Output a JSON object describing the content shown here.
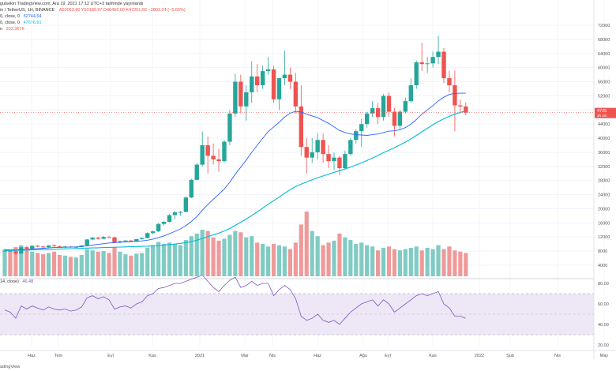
{
  "header": {
    "line1": "gulsekin TradingView.com, Ara 19, 2021 17:12 UTC+3 tarihinde yayınlandı",
    "line2_prefix": "in / TetherUS, 1H, BINANCE",
    "ohlc": "A50053.90  Y50189.97  D46456.00  K47251.66  −2802.24 (−5.60%)",
    "ma1_label": "0, close, 0",
    "ma1_value": "52744.54",
    "ma2_label": "0, close, 0",
    "ma2_value": "47676.91",
    "vol_label": "n",
    "vol_value": "203.367K",
    "rsi_label": "14, close)",
    "rsi_value": "46.48"
  },
  "source_label": "adingView",
  "colors": {
    "up": "#26a69a",
    "down": "#ef5350",
    "ma_fast": "#2962ff",
    "ma_slow": "#00bcd4",
    "vol_up": "#80cbc4",
    "vol_down": "#ef9a9a",
    "rsi_line": "#7e57c2",
    "rsi_band": "#ede7f6",
    "price_tag": "#ef5350"
  },
  "chart_data": [
    {
      "type": "candlestick",
      "title": "BTC / TetherUS, BINANCE",
      "y_axis_labels": [
        "72000",
        "68000",
        "64000",
        "60000",
        "56000",
        "52000",
        "48000",
        "44000",
        "40000",
        "36000",
        "32000",
        "28000",
        "24000",
        "20000",
        "16000",
        "12000",
        "8000",
        "4000"
      ],
      "x_axis_labels": [
        "Haz",
        "Tem",
        "Eyl",
        "Kas",
        "2021",
        "Mar",
        "Nis",
        "Haz",
        "Ağu",
        "Eyl",
        "Kas",
        "2022",
        "Şub",
        "Nis",
        "May"
      ],
      "last_price_tag": "4725",
      "last_price_sub": "3h 4m",
      "candles": [
        [
          8000,
          8200,
          7900,
          8100
        ],
        [
          8100,
          8400,
          7800,
          7900
        ],
        [
          7900,
          8000,
          7000,
          7300
        ],
        [
          7300,
          9200,
          7200,
          9100
        ],
        [
          9100,
          9500,
          8600,
          8700
        ],
        [
          8700,
          9700,
          8500,
          9500
        ],
        [
          9500,
          9800,
          9100,
          9300
        ],
        [
          9300,
          9500,
          8900,
          9100
        ],
        [
          9100,
          9700,
          9000,
          9600
        ],
        [
          9600,
          10000,
          9200,
          9400
        ],
        [
          9400,
          9600,
          9100,
          9200
        ],
        [
          9200,
          9500,
          8900,
          9300
        ],
        [
          9300,
          9400,
          9000,
          9100
        ],
        [
          9100,
          9300,
          8900,
          9200
        ],
        [
          9200,
          9700,
          9100,
          9600
        ],
        [
          9600,
          11500,
          9500,
          11300
        ],
        [
          11300,
          12000,
          11100,
          11800
        ],
        [
          11800,
          12100,
          11200,
          11500
        ],
        [
          11500,
          12300,
          11400,
          12000
        ],
        [
          12000,
          12400,
          11700,
          11900
        ],
        [
          11900,
          12100,
          10300,
          10500
        ],
        [
          10500,
          11000,
          10200,
          10800
        ],
        [
          10800,
          11200,
          10600,
          11000
        ],
        [
          11000,
          11100,
          10500,
          10700
        ],
        [
          10700,
          11500,
          10600,
          11400
        ],
        [
          11400,
          11900,
          11200,
          11700
        ],
        [
          11700,
          13300,
          11600,
          13100
        ],
        [
          13100,
          13800,
          12800,
          13600
        ],
        [
          13600,
          15900,
          13400,
          15700
        ],
        [
          15700,
          16500,
          15200,
          16300
        ],
        [
          16300,
          18500,
          16100,
          18200
        ],
        [
          18200,
          19400,
          17000,
          19000
        ],
        [
          19000,
          19400,
          18000,
          19100
        ],
        [
          19100,
          23500,
          19000,
          23200
        ],
        [
          23200,
          28500,
          23000,
          28200
        ],
        [
          28200,
          33000,
          28000,
          32500
        ],
        [
          32500,
          41900,
          32000,
          38000
        ],
        [
          38000,
          40500,
          30000,
          35000
        ],
        [
          35000,
          38500,
          32500,
          34000
        ],
        [
          34000,
          37000,
          30500,
          33500
        ],
        [
          33500,
          39500,
          33000,
          39000
        ],
        [
          39000,
          48000,
          38000,
          47000
        ],
        [
          47000,
          58300,
          46000,
          56000
        ],
        [
          56000,
          58000,
          47000,
          49000
        ],
        [
          49000,
          55000,
          45000,
          53000
        ],
        [
          53000,
          61800,
          50000,
          57500
        ],
        [
          57500,
          61000,
          53000,
          55000
        ],
        [
          55000,
          60500,
          54000,
          59000
        ],
        [
          59000,
          63000,
          58000,
          59500
        ],
        [
          59500,
          60500,
          50000,
          51000
        ],
        [
          51000,
          57000,
          48000,
          57000
        ],
        [
          57000,
          64800,
          55000,
          58000
        ],
        [
          58000,
          60000,
          54000,
          56000
        ],
        [
          56000,
          58500,
          47000,
          49000
        ],
        [
          49000,
          55000,
          35000,
          37500
        ],
        [
          37500,
          40000,
          30000,
          34500
        ],
        [
          34500,
          40000,
          33000,
          36000
        ],
        [
          36000,
          41500,
          34000,
          39500
        ],
        [
          39500,
          41300,
          33000,
          35500
        ],
        [
          35500,
          38000,
          31500,
          33500
        ],
        [
          33500,
          36000,
          31000,
          34500
        ],
        [
          34500,
          35000,
          29500,
          31500
        ],
        [
          31500,
          36500,
          31000,
          35500
        ],
        [
          35500,
          40000,
          35000,
          39500
        ],
        [
          39500,
          42500,
          38500,
          42000
        ],
        [
          42000,
          45500,
          37500,
          44000
        ],
        [
          44000,
          47500,
          43000,
          47000
        ],
        [
          47000,
          50500,
          46000,
          48500
        ],
        [
          48500,
          50000,
          44000,
          46000
        ],
        [
          46000,
          52500,
          45000,
          52000
        ],
        [
          52000,
          53000,
          46000,
          47500
        ],
        [
          47500,
          48500,
          40500,
          43500
        ],
        [
          43500,
          48000,
          42500,
          47500
        ],
        [
          47500,
          51500,
          47000,
          50500
        ],
        [
          50500,
          57000,
          50000,
          55000
        ],
        [
          55000,
          62000,
          54000,
          61500
        ],
        [
          61500,
          67000,
          59000,
          61000
        ],
        [
          61000,
          63000,
          58500,
          61200
        ],
        [
          61200,
          64500,
          60000,
          63000
        ],
        [
          63000,
          69000,
          61000,
          64500
        ],
        [
          64500,
          65500,
          55600,
          57000
        ],
        [
          57000,
          59000,
          53000,
          55000
        ],
        [
          55000,
          59200,
          42000,
          49300
        ],
        [
          49300,
          51000,
          47000,
          49000
        ],
        [
          49000,
          50200,
          46456,
          47250
        ]
      ],
      "ma_fast": [
        8400,
        8350,
        8300,
        8400,
        8500,
        8600,
        8700,
        8800,
        8900,
        9000,
        9050,
        9100,
        9150,
        9200,
        9300,
        9500,
        9700,
        9900,
        10100,
        10300,
        10400,
        10500,
        10600,
        10700,
        10800,
        10900,
        11100,
        11400,
        11800,
        12300,
        12900,
        13600,
        14300,
        15200,
        16400,
        17800,
        19600,
        21200,
        22700,
        24100,
        25600,
        27500,
        29800,
        31800,
        33800,
        36000,
        38000,
        40000,
        41900,
        43200,
        44500,
        46000,
        47100,
        47600,
        47400,
        46800,
        46300,
        45800,
        45000,
        44200,
        43200,
        42200,
        41600,
        41200,
        41000,
        40900,
        40800,
        41000,
        41200,
        41600,
        42000,
        42100,
        42400,
        43000,
        44000,
        45300,
        46800,
        48000,
        49200,
        50600,
        51600,
        52400,
        52700,
        52750,
        52744
      ],
      "ma_slow": [
        8100,
        8150,
        8200,
        8250,
        8300,
        8350,
        8400,
        8450,
        8500,
        8550,
        8600,
        8650,
        8700,
        8750,
        8800,
        8850,
        8900,
        8950,
        9000,
        9050,
        9100,
        9150,
        9200,
        9250,
        9300,
        9350,
        9400,
        9500,
        9600,
        9700,
        9850,
        10000,
        10200,
        10400,
        10700,
        11100,
        11600,
        12100,
        12600,
        13100,
        13700,
        14400,
        15300,
        16200,
        17100,
        18100,
        19100,
        20200,
        21300,
        22300,
        23300,
        24400,
        25400,
        26300,
        27000,
        27600,
        28200,
        28800,
        29300,
        29800,
        30300,
        30800,
        31300,
        31800,
        32400,
        33000,
        33700,
        34400,
        35100,
        35900,
        36600,
        37300,
        38100,
        38900,
        39800,
        40800,
        41800,
        42800,
        43800,
        44700,
        45500,
        46200,
        46800,
        47300,
        47677
      ],
      "volume_scale_max": 1.0,
      "volume": [
        0.42,
        0.4,
        0.45,
        0.48,
        0.42,
        0.38,
        0.36,
        0.34,
        0.36,
        0.38,
        0.33,
        0.32,
        0.3,
        0.29,
        0.33,
        0.42,
        0.4,
        0.38,
        0.39,
        0.36,
        0.45,
        0.38,
        0.34,
        0.32,
        0.35,
        0.36,
        0.44,
        0.48,
        0.53,
        0.5,
        0.52,
        0.5,
        0.48,
        0.56,
        0.62,
        0.66,
        0.72,
        0.7,
        0.6,
        0.55,
        0.58,
        0.64,
        0.7,
        0.68,
        0.6,
        0.62,
        0.52,
        0.5,
        0.46,
        0.5,
        0.48,
        0.46,
        0.42,
        0.52,
        0.8,
        1.0,
        0.7,
        0.62,
        0.48,
        0.52,
        0.55,
        0.66,
        0.6,
        0.56,
        0.5,
        0.52,
        0.48,
        0.46,
        0.4,
        0.44,
        0.46,
        0.42,
        0.4,
        0.42,
        0.44,
        0.46,
        0.4,
        0.44,
        0.42,
        0.48,
        0.42,
        0.46,
        0.4,
        0.38,
        0.36
      ],
      "rsi_axis_labels": [
        "80.00",
        "60.00",
        "40.00",
        "20.00"
      ],
      "rsi_overbought": 70,
      "rsi_oversold": 30,
      "rsi": [
        54,
        52,
        46,
        58,
        55,
        58,
        56,
        54,
        57,
        55,
        54,
        55,
        53,
        54,
        57,
        66,
        68,
        65,
        67,
        64,
        55,
        57,
        58,
        56,
        60,
        62,
        68,
        70,
        75,
        76,
        78,
        80,
        80,
        82,
        84,
        86,
        88,
        82,
        76,
        72,
        78,
        83,
        86,
        76,
        78,
        82,
        78,
        80,
        80,
        68,
        74,
        78,
        74,
        65,
        48,
        44,
        46,
        50,
        44,
        42,
        44,
        40,
        46,
        52,
        56,
        60,
        62,
        64,
        58,
        64,
        60,
        52,
        56,
        60,
        64,
        68,
        70,
        68,
        70,
        72,
        60,
        56,
        48,
        48,
        46
      ]
    }
  ]
}
